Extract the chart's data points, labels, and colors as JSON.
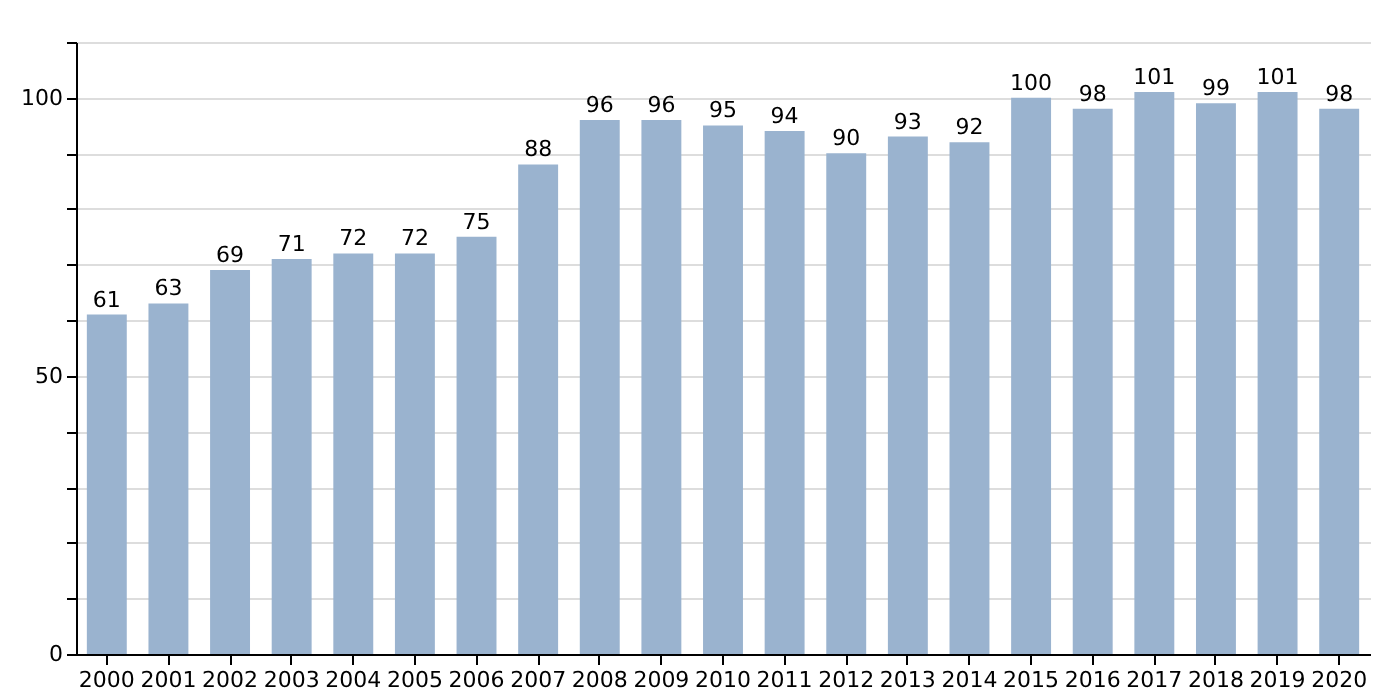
{
  "chart_data": {
    "type": "bar",
    "categories": [
      "2000",
      "2001",
      "2002",
      "2003",
      "2004",
      "2005",
      "2006",
      "2007",
      "2008",
      "2009",
      "2010",
      "2011",
      "2012",
      "2013",
      "2014",
      "2015",
      "2016",
      "2017",
      "2018",
      "2019",
      "2020"
    ],
    "values": [
      61,
      63,
      69,
      71,
      72,
      72,
      75,
      88,
      96,
      96,
      95,
      94,
      90,
      93,
      92,
      100,
      98,
      101,
      99,
      101,
      98
    ],
    "color": "#9ab3cf",
    "ylim": [
      0,
      110
    ],
    "yticks": [
      0,
      {
        "value": 10,
        "label": null
      },
      {
        "value": 20,
        "label": null
      },
      {
        "value": 30,
        "label": null
      },
      {
        "value": 40,
        "label": null
      },
      50,
      {
        "value": 60,
        "label": null
      },
      {
        "value": 70,
        "label": null
      },
      {
        "value": 80,
        "label": null
      },
      {
        "value": 90,
        "label": null
      },
      100,
      {
        "value": 110,
        "label": null
      }
    ],
    "grid": "y",
    "data_labels": true
  }
}
